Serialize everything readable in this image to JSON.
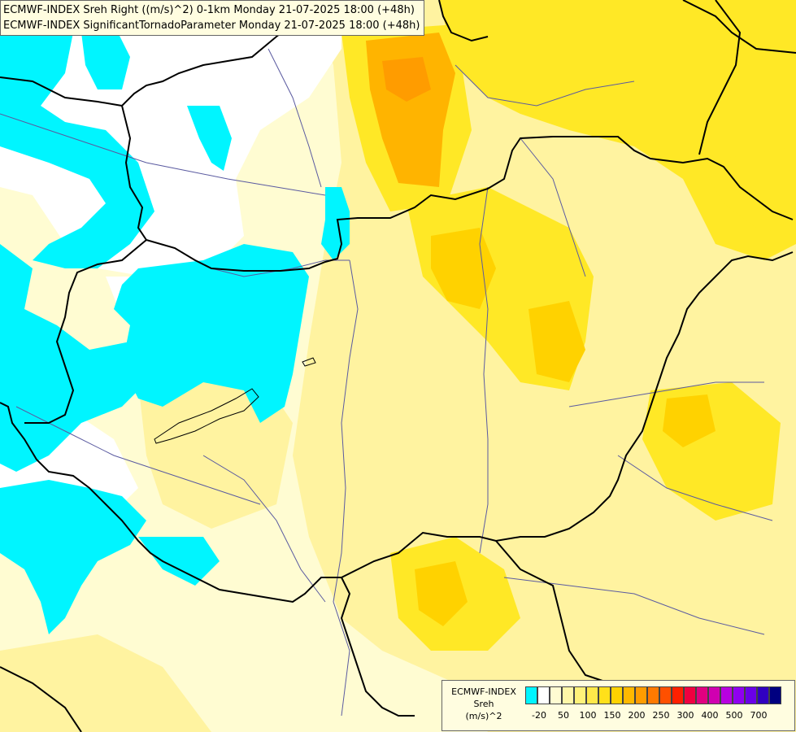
{
  "titles": {
    "line1": "ECMWF-INDEX Sreh Right ((m/s)^2) 0-1km Monday 21-07-2025 18:00 (+48h)",
    "line2": "ECMWF-INDEX SignificantTornadoParameter Monday 21-07-2025 18:00 (+48h)"
  },
  "legend": {
    "line1": "ECMWF-INDEX",
    "line2": "Sreh",
    "line3": "(m/s)^2",
    "colors": [
      "#00f5ff",
      "#ffffff",
      "#fffcd2",
      "#fff7a8",
      "#fff27a",
      "#ffe84a",
      "#ffe01a",
      "#ffd200",
      "#ffb800",
      "#ff9c00",
      "#ff7a00",
      "#ff5000",
      "#ff2000",
      "#f00040",
      "#e00080",
      "#d000b0",
      "#b800e0",
      "#9000f0",
      "#6a00e8",
      "#3000c0",
      "#000080"
    ],
    "ticks": [
      "-20",
      "50",
      "100",
      "150",
      "200",
      "250",
      "300",
      "400",
      "500",
      "700"
    ]
  },
  "colors": {
    "cyan": "#00f5ff",
    "white": "#ffffff",
    "pale_yellow": "#fffcd2",
    "light_yellow": "#fff29a",
    "yellow": "#ffe81e",
    "orange": "#ffb400",
    "border": "#000000",
    "river": "#6060a0"
  }
}
